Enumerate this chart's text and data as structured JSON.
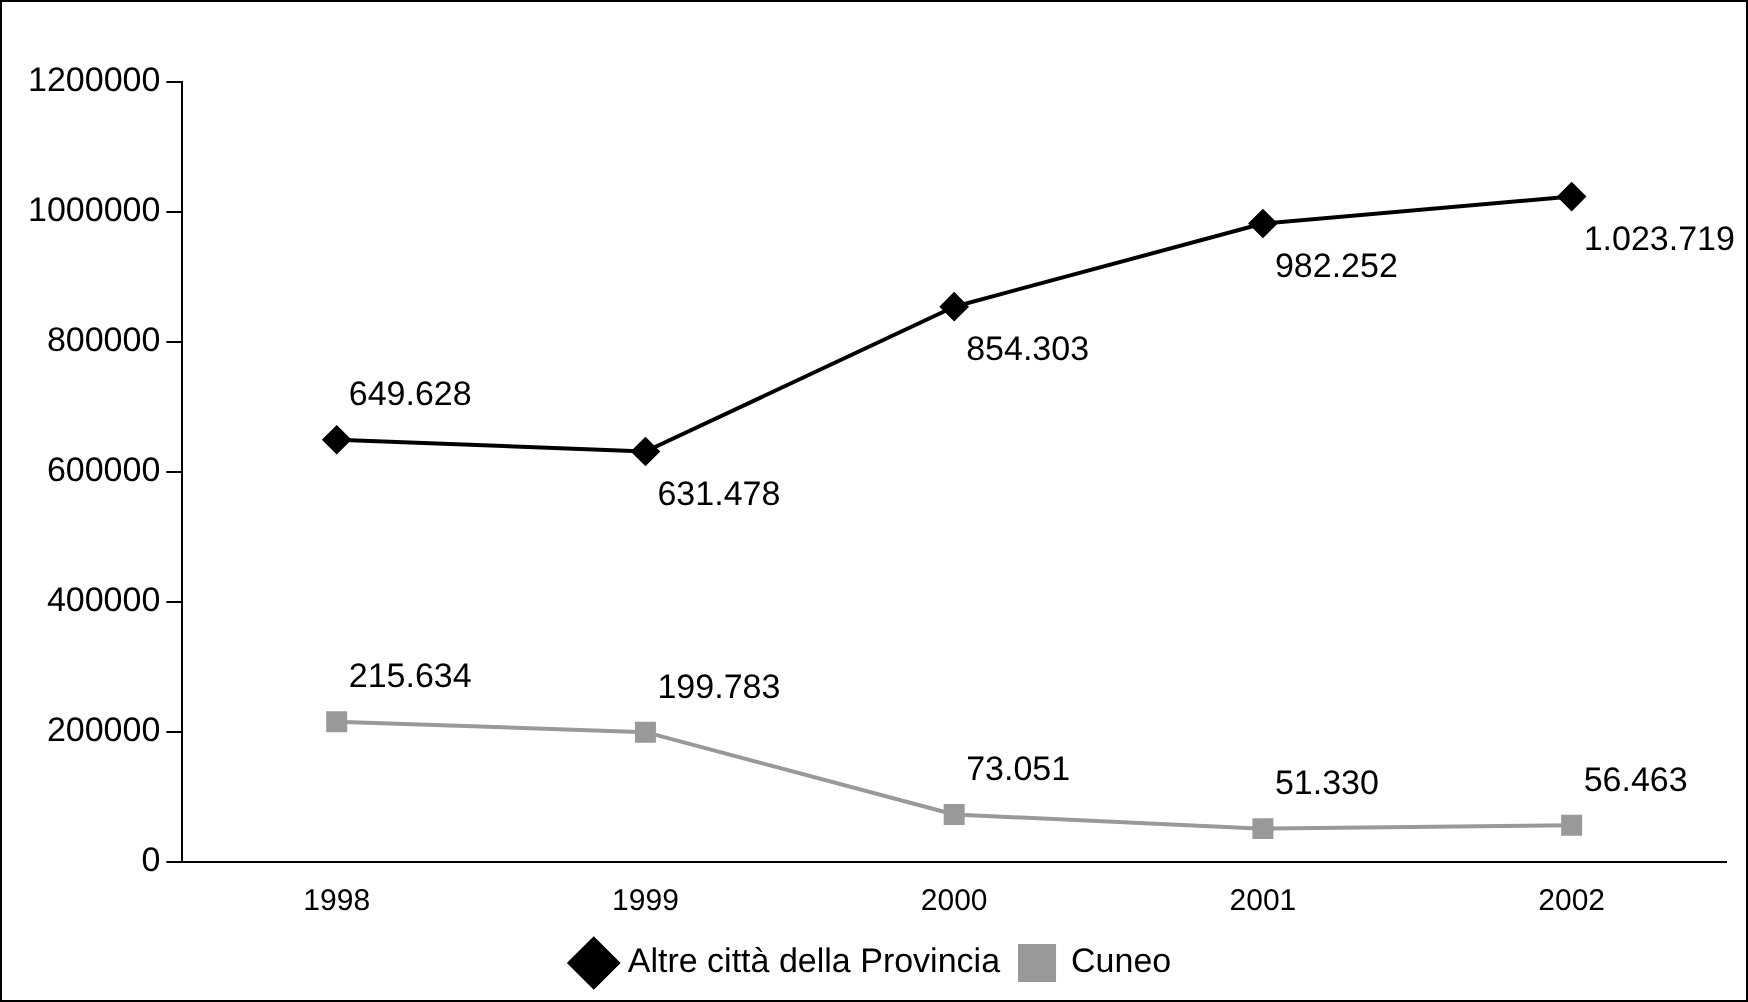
{
  "chart_data": {
    "type": "line",
    "categories": [
      "1998",
      "1999",
      "2000",
      "2001",
      "2002"
    ],
    "series": [
      {
        "name": "Altre città della Provincia",
        "color": "#000000",
        "marker": "diamond",
        "values": [
          649628,
          631478,
          854303,
          982252,
          1023719
        ],
        "value_labels": [
          "649.628",
          "631.478",
          "854.303",
          "982.252",
          "1.023.719"
        ]
      },
      {
        "name": "Cuneo",
        "color": "#999999",
        "marker": "square",
        "values": [
          215634,
          199783,
          73051,
          51330,
          56463
        ],
        "value_labels": [
          "215.634",
          "199.783",
          "73.051",
          "51.330",
          "56.463"
        ]
      }
    ],
    "ylim": [
      0,
      1200000
    ],
    "yticks": [
      0,
      200000,
      400000,
      600000,
      800000,
      1000000,
      1200000
    ],
    "grid": false,
    "legend": "bottom",
    "line_style": "solid"
  }
}
